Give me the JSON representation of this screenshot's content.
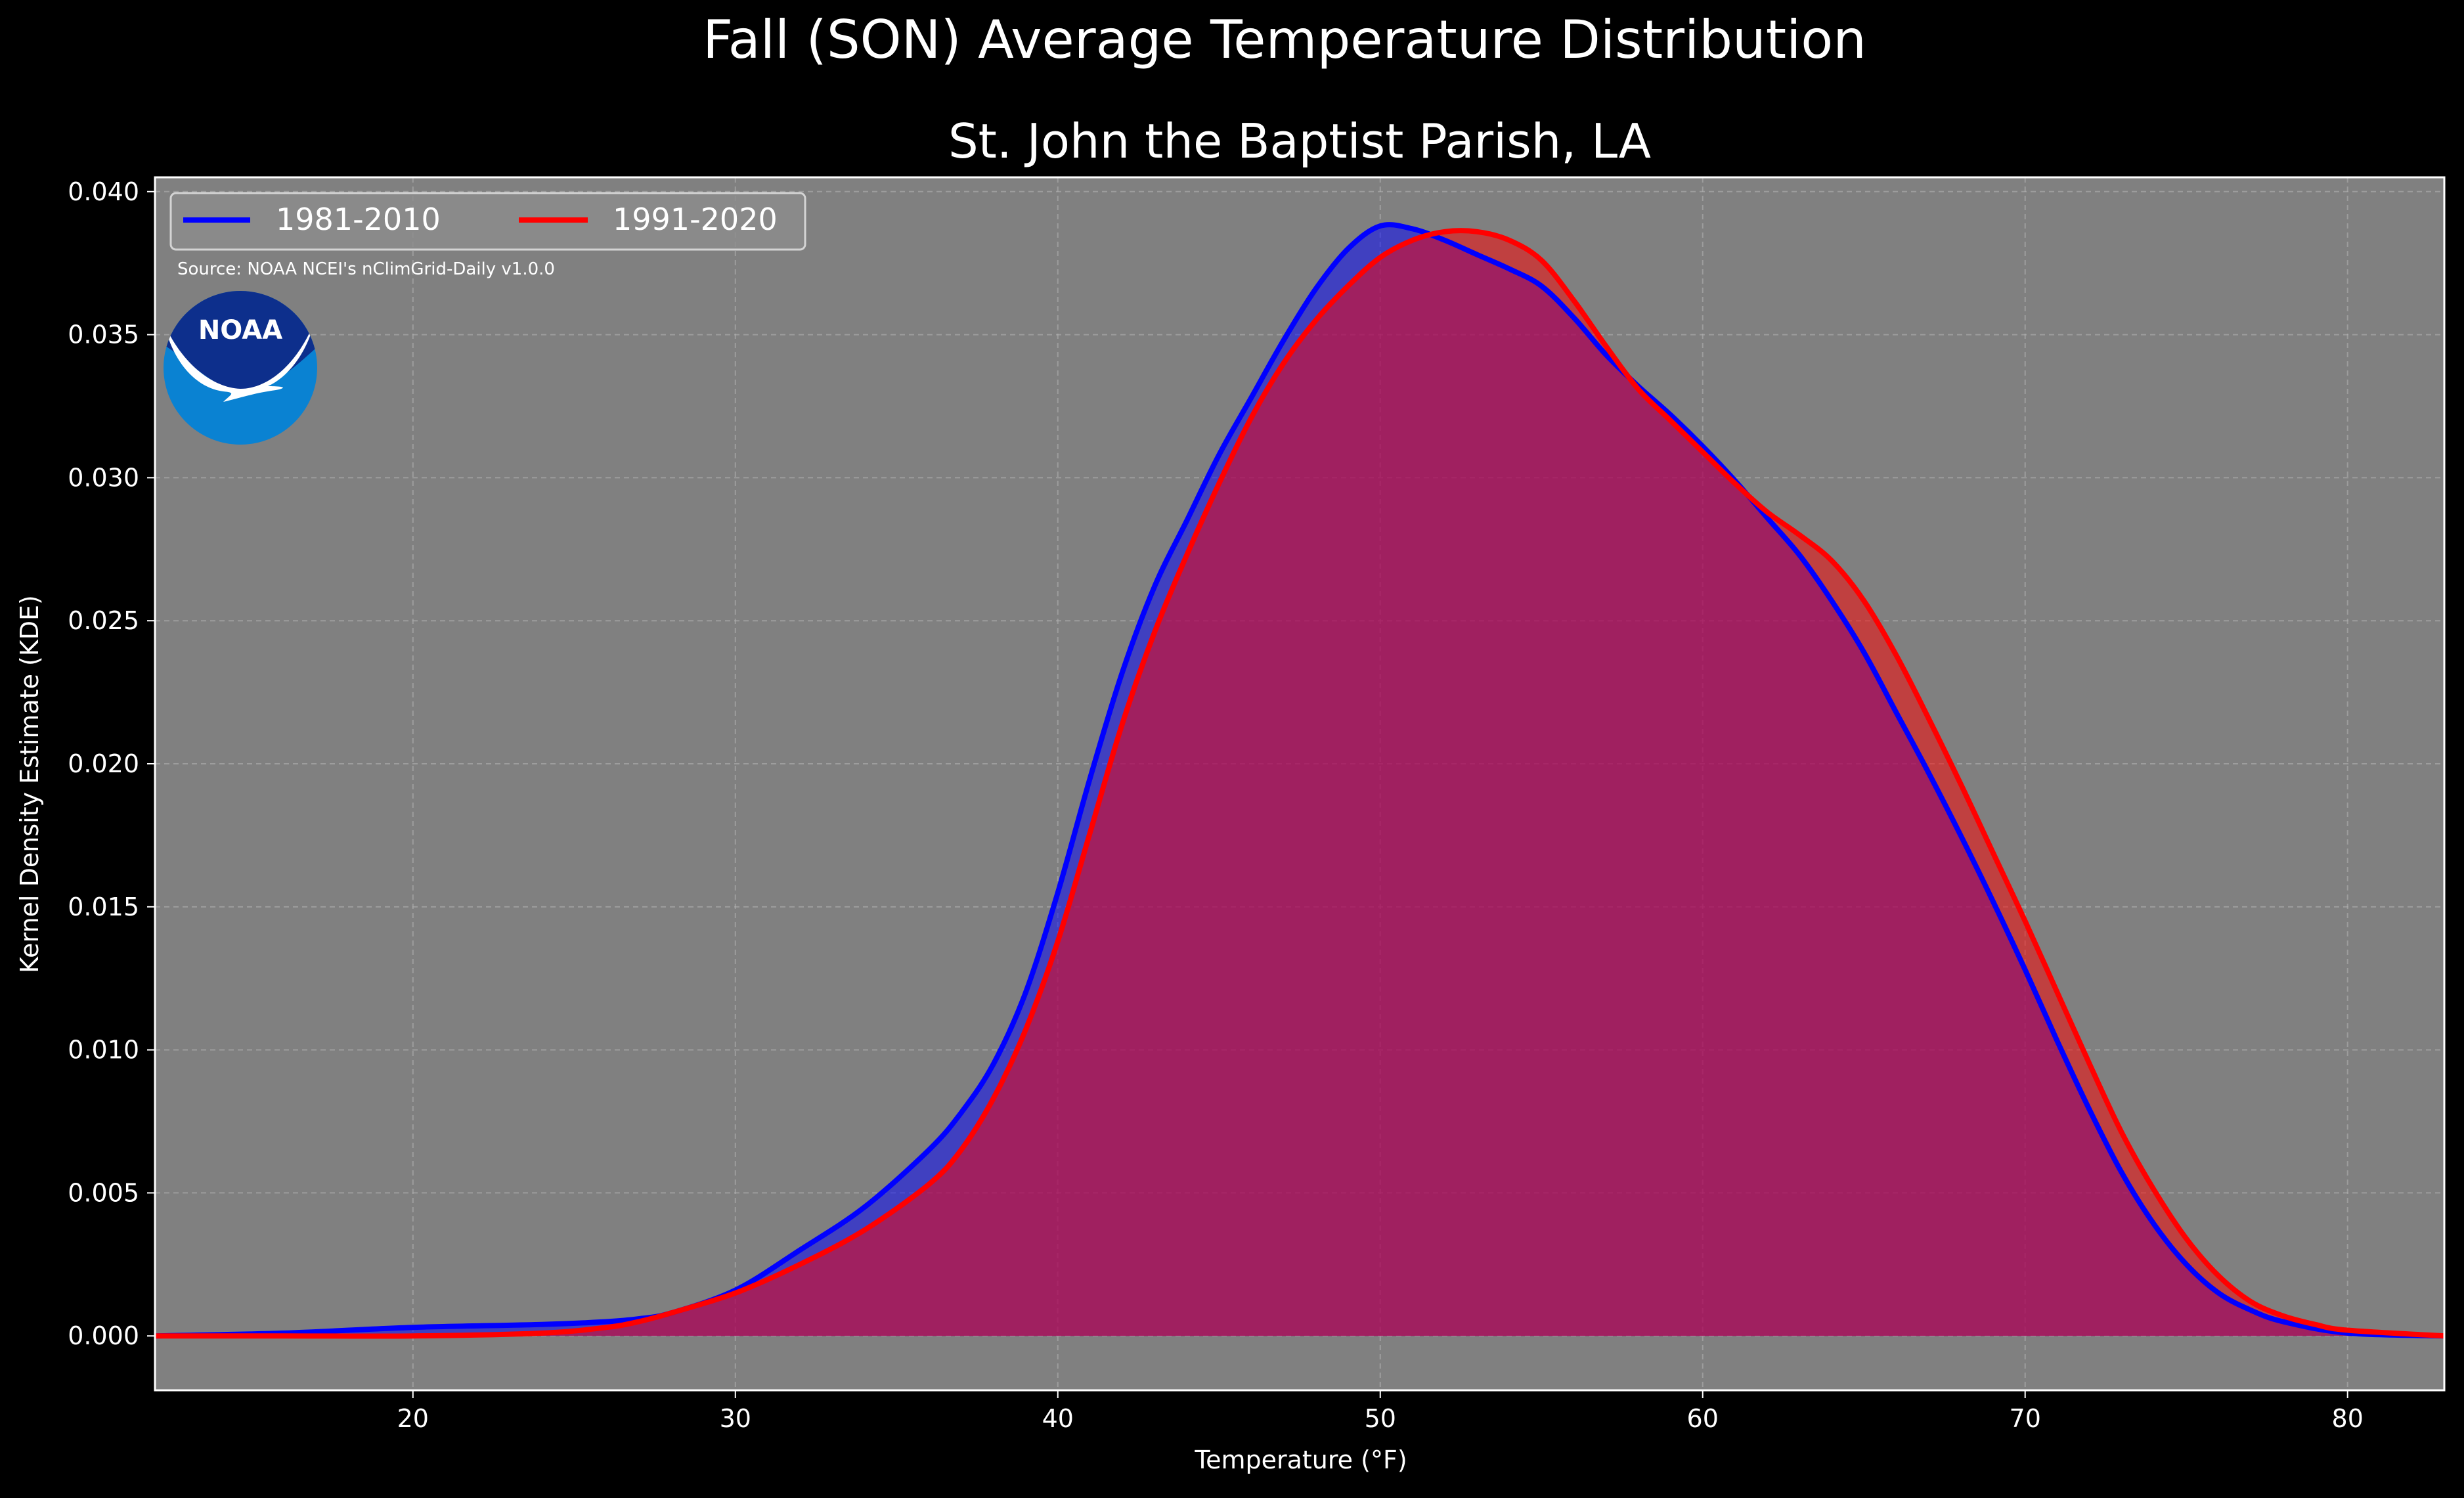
{
  "figure": {
    "suptitle": "Fall (SON) Average Temperature Distribution",
    "title": "St. John the Baptist Parish, LA",
    "source": "Source: NOAA NCEI's nClimGrid-Daily v1.0.0",
    "logo_text": "NOAA",
    "background_color": "#000000",
    "plot_background_color": "#808080"
  },
  "chart_data": {
    "type": "area",
    "xlabel": "Temperature (°F)",
    "ylabel": "Kernel Density Estimate (KDE)",
    "xlim": [
      12,
      83
    ],
    "ylim": [
      -0.0019,
      0.0405
    ],
    "xticks": [
      20,
      30,
      40,
      50,
      60,
      70,
      80
    ],
    "yticks": [
      0.0,
      0.005,
      0.01,
      0.015,
      0.02,
      0.025,
      0.03,
      0.035,
      0.04
    ],
    "ytick_labels": [
      "0.000",
      "0.005",
      "0.010",
      "0.015",
      "0.020",
      "0.025",
      "0.030",
      "0.035",
      "0.040"
    ],
    "grid": true,
    "legend_position": "upper-left",
    "series": [
      {
        "name": "1981-2010",
        "color": "#0000ff",
        "fill_color": "#0000ff",
        "points": [
          [
            12,
            0.0
          ],
          [
            16,
            0.0001
          ],
          [
            20,
            0.0003
          ],
          [
            24,
            0.0004
          ],
          [
            26,
            0.0005
          ],
          [
            27,
            0.0006
          ],
          [
            28,
            0.0008
          ],
          [
            30,
            0.0016
          ],
          [
            32,
            0.003
          ],
          [
            34,
            0.0045
          ],
          [
            36,
            0.0065
          ],
          [
            37,
            0.0078
          ],
          [
            38,
            0.0095
          ],
          [
            39,
            0.012
          ],
          [
            40,
            0.0155
          ],
          [
            41,
            0.0195
          ],
          [
            42,
            0.0232
          ],
          [
            43,
            0.0262
          ],
          [
            44,
            0.0285
          ],
          [
            45,
            0.0308
          ],
          [
            46,
            0.0328
          ],
          [
            47,
            0.0348
          ],
          [
            48,
            0.0366
          ],
          [
            49,
            0.038
          ],
          [
            50,
            0.0388
          ],
          [
            51,
            0.0387
          ],
          [
            52,
            0.0383
          ],
          [
            53,
            0.0378
          ],
          [
            54,
            0.0373
          ],
          [
            55,
            0.0367
          ],
          [
            56,
            0.0356
          ],
          [
            57,
            0.0343
          ],
          [
            58,
            0.0332
          ],
          [
            59,
            0.0322
          ],
          [
            60,
            0.0311
          ],
          [
            61,
            0.0299
          ],
          [
            62,
            0.0286
          ],
          [
            63,
            0.0273
          ],
          [
            64,
            0.0257
          ],
          [
            65,
            0.0239
          ],
          [
            66,
            0.0218
          ],
          [
            67,
            0.0197
          ],
          [
            68,
            0.0175
          ],
          [
            69,
            0.0152
          ],
          [
            70,
            0.0128
          ],
          [
            71,
            0.0103
          ],
          [
            72,
            0.0079
          ],
          [
            73,
            0.0057
          ],
          [
            74,
            0.0039
          ],
          [
            75,
            0.0025
          ],
          [
            76,
            0.0015
          ],
          [
            77,
            0.0009
          ],
          [
            78,
            0.0005
          ],
          [
            80,
            0.0001
          ],
          [
            83,
            0.0
          ]
        ]
      },
      {
        "name": "1991-2020",
        "color": "#ff0000",
        "fill_color": "#ff0000",
        "points": [
          [
            12,
            0.0
          ],
          [
            16,
            0.0
          ],
          [
            20,
            0.0
          ],
          [
            24,
            0.0001
          ],
          [
            26,
            0.0003
          ],
          [
            27,
            0.0005
          ],
          [
            28,
            0.0008
          ],
          [
            30,
            0.0015
          ],
          [
            32,
            0.0025
          ],
          [
            34,
            0.0037
          ],
          [
            36,
            0.0053
          ],
          [
            37,
            0.0065
          ],
          [
            38,
            0.0083
          ],
          [
            39,
            0.0107
          ],
          [
            40,
            0.0138
          ],
          [
            41,
            0.0176
          ],
          [
            42,
            0.0214
          ],
          [
            43,
            0.0246
          ],
          [
            44,
            0.0273
          ],
          [
            45,
            0.0298
          ],
          [
            46,
            0.0321
          ],
          [
            47,
            0.034
          ],
          [
            48,
            0.0355
          ],
          [
            49,
            0.0367
          ],
          [
            50,
            0.0377
          ],
          [
            51,
            0.0383
          ],
          [
            52,
            0.0386
          ],
          [
            53,
            0.0386
          ],
          [
            54,
            0.0383
          ],
          [
            55,
            0.0376
          ],
          [
            56,
            0.0362
          ],
          [
            57,
            0.0346
          ],
          [
            58,
            0.0331
          ],
          [
            59,
            0.032
          ],
          [
            60,
            0.0309
          ],
          [
            61,
            0.0298
          ],
          [
            62,
            0.0288
          ],
          [
            63,
            0.028
          ],
          [
            64,
            0.0271
          ],
          [
            65,
            0.0257
          ],
          [
            66,
            0.0238
          ],
          [
            67,
            0.0216
          ],
          [
            68,
            0.0193
          ],
          [
            69,
            0.0169
          ],
          [
            70,
            0.0145
          ],
          [
            71,
            0.012
          ],
          [
            72,
            0.0095
          ],
          [
            73,
            0.0071
          ],
          [
            74,
            0.0051
          ],
          [
            75,
            0.0034
          ],
          [
            76,
            0.0021
          ],
          [
            77,
            0.0012
          ],
          [
            78,
            0.0007
          ],
          [
            79,
            0.0004
          ],
          [
            80,
            0.0002
          ],
          [
            83,
            0.0
          ]
        ]
      }
    ]
  }
}
